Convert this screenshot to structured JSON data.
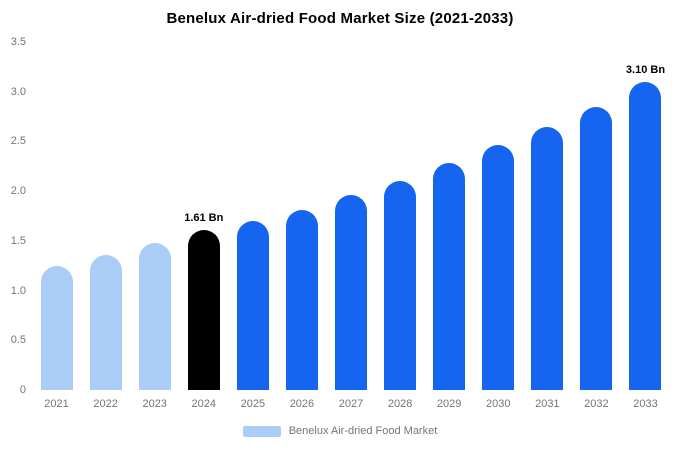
{
  "title": "Benelux Air-dried Food Market Size (2021-2033)",
  "legend": {
    "label": "Benelux Air-dried Food Market",
    "swatch_color": "#a9cdf6"
  },
  "colors": {
    "light": "#a9cdf6",
    "blue": "#1565f0",
    "black": "#000000",
    "axis_text": "#757575",
    "background": "#ffffff"
  },
  "chart_data": {
    "type": "bar",
    "title": "Benelux Air-dried Food Market Size (2021-2033)",
    "xlabel": "",
    "ylabel": "",
    "ylim": [
      0,
      3.5
    ],
    "grid": false,
    "legend_position": "bottom",
    "ytick_labels": [
      "0",
      "0.5",
      "1.0",
      "1.5",
      "2.0",
      "2.5",
      "3.0",
      "3.5"
    ],
    "categories": [
      "2021",
      "2022",
      "2023",
      "2024",
      "2025",
      "2026",
      "2027",
      "2028",
      "2029",
      "2030",
      "2031",
      "2032",
      "2033"
    ],
    "values": [
      1.25,
      1.36,
      1.48,
      1.61,
      1.7,
      1.81,
      1.96,
      2.1,
      2.28,
      2.46,
      2.65,
      2.85,
      3.1
    ],
    "bar_colors": [
      "light",
      "light",
      "light",
      "black",
      "blue",
      "blue",
      "blue",
      "blue",
      "blue",
      "blue",
      "blue",
      "blue",
      "blue"
    ],
    "data_labels": {
      "2024": "1.61 Bn",
      "2033": "3.10 Bn"
    },
    "series_name": "Benelux Air-dried Food Market"
  }
}
